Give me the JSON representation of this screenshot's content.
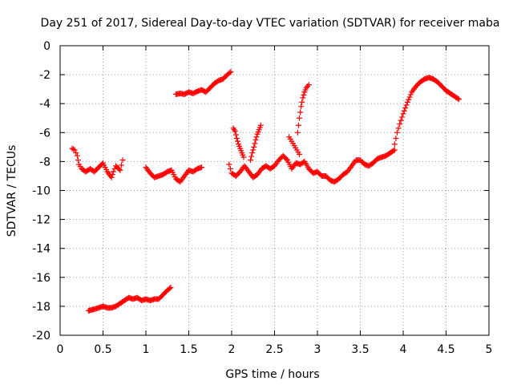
{
  "chart_data": {
    "type": "scatter",
    "title": "Day 251 of 2017, Sidereal Day-to-day VTEC variation (SDTVAR) for receiver maba",
    "xlabel": "GPS time / hours",
    "ylabel": "SDTVAR / TECUs",
    "xlim": [
      0,
      5
    ],
    "ylim": [
      -20,
      0
    ],
    "xticks": [
      0,
      0.5,
      1,
      1.5,
      2,
      2.5,
      3,
      3.5,
      4,
      4.5,
      5
    ],
    "yticks": [
      0,
      -2,
      -4,
      -6,
      -8,
      -10,
      -12,
      -14,
      -16,
      -18,
      -20
    ],
    "xtick_labels": [
      "0",
      "0.5",
      "1",
      "1.5",
      "2",
      "2.5",
      "3",
      "3.5",
      "4",
      "4.5",
      "5"
    ],
    "ytick_labels": [
      "0",
      "-2",
      "-4",
      "-6",
      "-8",
      "-10",
      "-12",
      "-14",
      "-16",
      "-18",
      "-20"
    ],
    "grid": true,
    "marker": "+",
    "color": "#ff0000",
    "series": [
      {
        "name": "arc-low-1",
        "x": [
          0.33,
          0.4,
          0.45,
          0.5,
          0.55,
          0.6,
          0.65,
          0.7,
          0.75,
          0.8,
          0.85,
          0.9,
          0.95,
          1.0,
          1.05,
          1.1,
          1.15,
          1.2,
          1.25,
          1.29
        ],
        "y": [
          -18.3,
          -18.2,
          -18.1,
          -18.0,
          -18.1,
          -18.1,
          -18.0,
          -17.8,
          -17.6,
          -17.4,
          -17.5,
          -17.4,
          -17.6,
          -17.5,
          -17.6,
          -17.5,
          -17.5,
          -17.2,
          -16.9,
          -16.7
        ]
      },
      {
        "name": "arc-mid-1",
        "x": [
          0.14,
          0.17,
          0.2,
          0.22,
          0.25,
          0.3,
          0.35,
          0.4,
          0.45,
          0.5,
          0.55,
          0.6,
          0.62,
          0.65,
          0.7,
          0.73
        ],
        "y": [
          -7.1,
          -7.2,
          -7.6,
          -8.2,
          -8.5,
          -8.7,
          -8.5,
          -8.7,
          -8.4,
          -8.1,
          -8.7,
          -9.1,
          -8.7,
          -8.3,
          -8.6,
          -7.9
        ]
      },
      {
        "name": "arc-mid-2",
        "x": [
          1.0,
          1.05,
          1.1,
          1.15,
          1.2,
          1.25,
          1.3,
          1.35,
          1.4,
          1.45,
          1.5,
          1.55,
          1.6,
          1.65
        ],
        "y": [
          -8.4,
          -8.8,
          -9.1,
          -9.0,
          -8.9,
          -8.7,
          -8.6,
          -9.2,
          -9.4,
          -9.0,
          -8.6,
          -8.7,
          -8.5,
          -8.4
        ]
      },
      {
        "name": "arc-upper-1",
        "x": [
          1.35,
          1.4,
          1.45,
          1.5,
          1.55,
          1.6,
          1.65,
          1.7,
          1.75,
          1.8,
          1.85,
          1.9,
          1.95,
          1.99
        ],
        "y": [
          -3.35,
          -3.3,
          -3.35,
          -3.2,
          -3.3,
          -3.15,
          -3.05,
          -3.2,
          -2.9,
          -2.6,
          -2.4,
          -2.3,
          -2.0,
          -1.8
        ]
      },
      {
        "name": "arc-mid-3",
        "x": [
          1.97,
          2.0,
          2.05,
          2.1,
          2.15,
          2.2,
          2.25,
          2.3,
          2.35,
          2.4,
          2.45,
          2.5,
          2.55,
          2.6,
          2.65,
          2.7,
          2.75,
          2.8,
          2.85,
          2.9,
          2.95,
          3.0,
          3.05,
          3.1,
          3.15,
          3.2,
          3.25,
          3.3,
          3.35,
          3.4,
          3.45,
          3.5,
          3.55,
          3.6,
          3.65,
          3.7,
          3.75,
          3.8,
          3.85,
          3.9
        ],
        "y": [
          -8.2,
          -8.8,
          -9.0,
          -8.7,
          -8.3,
          -8.7,
          -9.1,
          -8.9,
          -8.5,
          -8.3,
          -8.5,
          -8.3,
          -7.9,
          -7.6,
          -7.9,
          -8.5,
          -8.1,
          -8.2,
          -8.0,
          -8.5,
          -8.8,
          -8.7,
          -9.0,
          -9.0,
          -9.3,
          -9.4,
          -9.2,
          -8.9,
          -8.7,
          -8.3,
          -7.9,
          -7.9,
          -8.2,
          -8.3,
          -8.1,
          -7.8,
          -7.7,
          -7.6,
          -7.4,
          -7.2
        ]
      },
      {
        "name": "spike-1",
        "x": [
          2.02,
          2.04,
          2.06,
          2.08,
          2.1,
          2.12,
          2.14
        ],
        "y": [
          -5.7,
          -5.9,
          -6.4,
          -6.8,
          -7.1,
          -7.4,
          -7.7
        ]
      },
      {
        "name": "spike-2",
        "x": [
          2.22,
          2.24,
          2.26,
          2.28,
          2.3,
          2.32,
          2.34
        ],
        "y": [
          -7.9,
          -7.4,
          -7.0,
          -6.5,
          -6.1,
          -5.8,
          -5.5
        ]
      },
      {
        "name": "spike-3",
        "x": [
          2.67,
          2.7,
          2.73,
          2.76,
          2.79
        ],
        "y": [
          -6.3,
          -6.6,
          -6.9,
          -7.2,
          -7.5
        ]
      },
      {
        "name": "spike-4",
        "x": [
          2.77,
          2.79,
          2.81,
          2.83,
          2.85,
          2.87,
          2.9
        ],
        "y": [
          -6.0,
          -5.0,
          -4.2,
          -3.6,
          -3.2,
          -2.9,
          -2.7
        ]
      },
      {
        "name": "arc-rise-1",
        "x": [
          3.9,
          3.93,
          3.96,
          4.0,
          4.05,
          4.1,
          4.15,
          4.2,
          4.25,
          4.3,
          4.35,
          4.4,
          4.45,
          4.5,
          4.55,
          4.6,
          4.65
        ],
        "y": [
          -6.8,
          -6.0,
          -5.4,
          -4.7,
          -3.9,
          -3.2,
          -2.8,
          -2.5,
          -2.3,
          -2.2,
          -2.3,
          -2.5,
          -2.8,
          -3.1,
          -3.3,
          -3.5,
          -3.7
        ]
      }
    ]
  }
}
